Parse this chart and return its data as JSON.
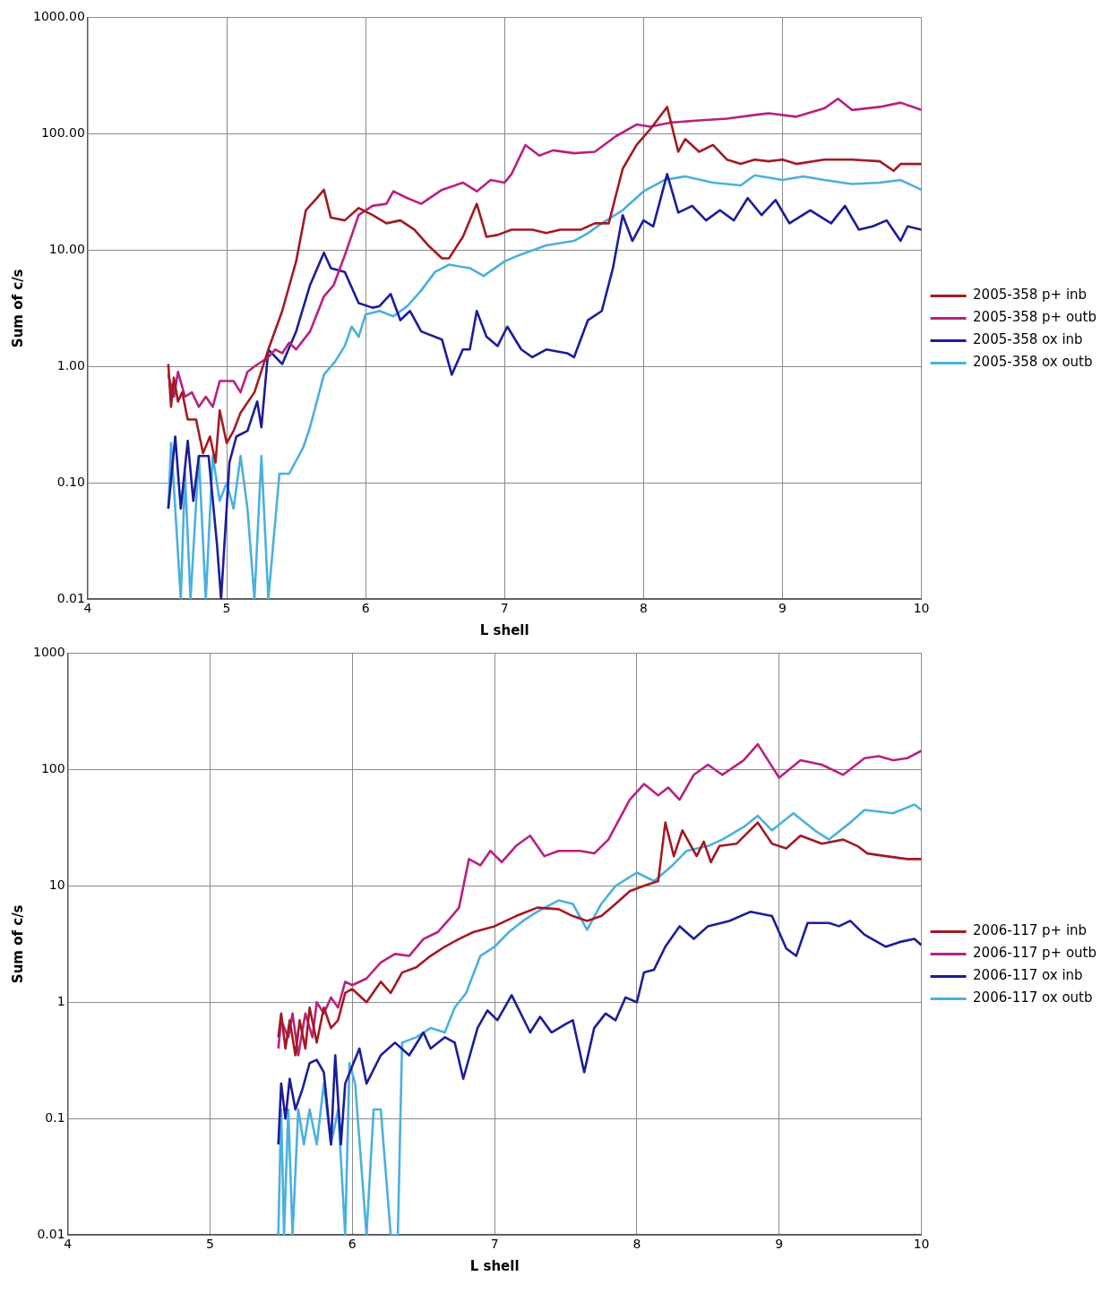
{
  "chart_data": [
    {
      "type": "line",
      "xlabel": "L shell",
      "ylabel": "Sum of c/s",
      "log": "y",
      "grid": true,
      "legend": "right",
      "marker": "none",
      "line_style": "solid",
      "xlim": [
        4,
        10
      ],
      "xticks": [
        4,
        5,
        6,
        7,
        8,
        9,
        10
      ],
      "ylim": [
        0.01,
        1000
      ],
      "yticks": [
        {
          "value": 0.01,
          "label": "0.01"
        },
        {
          "value": 0.1,
          "label": "0.10"
        },
        {
          "value": 1,
          "label": "1.00"
        },
        {
          "value": 10,
          "label": "10.00"
        },
        {
          "value": 100,
          "label": "100.00"
        },
        {
          "value": 1000,
          "label": "1000.00"
        }
      ],
      "series": [
        {
          "name": "2005-358 p+ inb",
          "color": "#a31a22",
          "x": [
            4.58,
            4.6,
            4.62,
            4.65,
            4.68,
            4.72,
            4.78,
            4.83,
            4.88,
            4.92,
            4.95,
            5.0,
            5.05,
            5.1,
            5.2,
            5.3,
            5.4,
            5.5,
            5.57,
            5.65,
            5.7,
            5.75,
            5.85,
            5.95,
            6.05,
            6.15,
            6.25,
            6.35,
            6.45,
            6.55,
            6.6,
            6.7,
            6.8,
            6.87,
            6.95,
            7.05,
            7.2,
            7.3,
            7.4,
            7.55,
            7.65,
            7.75,
            7.85,
            7.95,
            8.05,
            8.17,
            8.25,
            8.3,
            8.4,
            8.5,
            8.6,
            8.7,
            8.8,
            8.9,
            9.0,
            9.1,
            9.3,
            9.5,
            9.7,
            9.8,
            9.85,
            10
          ],
          "values": [
            1.05,
            0.45,
            0.8,
            0.5,
            0.6,
            0.35,
            0.35,
            0.18,
            0.25,
            0.15,
            0.42,
            0.22,
            0.28,
            0.4,
            0.6,
            1.4,
            3,
            8,
            22,
            28,
            33,
            19,
            18,
            23,
            20,
            17,
            18,
            15,
            11,
            8.5,
            8.5,
            13,
            25,
            13,
            13.5,
            15,
            15,
            14,
            15,
            15,
            17,
            17,
            50,
            80,
            110,
            170,
            70,
            90,
            70,
            80,
            60,
            55,
            60,
            58,
            60,
            55,
            60,
            60,
            58,
            48,
            55,
            55
          ]
        },
        {
          "name": "2005-358 p+ outb",
          "color": "#b8217f",
          "x": [
            4.58,
            4.62,
            4.65,
            4.7,
            4.75,
            4.8,
            4.85,
            4.9,
            4.95,
            5.05,
            5.1,
            5.15,
            5.2,
            5.3,
            5.35,
            5.4,
            5.45,
            5.5,
            5.6,
            5.7,
            5.77,
            5.85,
            5.95,
            6.05,
            6.15,
            6.2,
            6.3,
            6.4,
            6.55,
            6.7,
            6.8,
            6.9,
            7.0,
            7.05,
            7.15,
            7.25,
            7.35,
            7.5,
            7.65,
            7.8,
            7.95,
            8.05,
            8.2,
            8.4,
            8.6,
            8.8,
            8.9,
            9.1,
            9.3,
            9.4,
            9.5,
            9.7,
            9.85,
            10
          ],
          "values": [
            0.85,
            0.55,
            0.9,
            0.55,
            0.6,
            0.45,
            0.55,
            0.45,
            0.75,
            0.75,
            0.6,
            0.9,
            1.0,
            1.2,
            1.4,
            1.3,
            1.6,
            1.4,
            2,
            4,
            5,
            9,
            20,
            24,
            25,
            32,
            28,
            25,
            33,
            38,
            32,
            40,
            38,
            45,
            80,
            65,
            72,
            68,
            70,
            95,
            120,
            115,
            125,
            130,
            135,
            145,
            150,
            140,
            165,
            200,
            160,
            170,
            185,
            160
          ]
        },
        {
          "name": "2005-358 ox inb",
          "color": "#1c1c9a",
          "x": [
            4.58,
            4.63,
            4.67,
            4.72,
            4.76,
            4.8,
            4.87,
            4.93,
            4.96,
            5.02,
            5.07,
            5.15,
            5.22,
            5.25,
            5.3,
            5.4,
            5.5,
            5.6,
            5.7,
            5.75,
            5.85,
            5.95,
            6.05,
            6.1,
            6.18,
            6.25,
            6.32,
            6.4,
            6.55,
            6.62,
            6.7,
            6.75,
            6.8,
            6.87,
            6.95,
            7.02,
            7.12,
            7.2,
            7.3,
            7.45,
            7.5,
            7.6,
            7.7,
            7.78,
            7.85,
            7.92,
            8.0,
            8.07,
            8.17,
            8.25,
            8.35,
            8.45,
            8.55,
            8.65,
            8.75,
            8.85,
            8.95,
            9.05,
            9.2,
            9.35,
            9.45,
            9.55,
            9.65,
            9.75,
            9.85,
            9.9,
            10
          ],
          "values": [
            0.06,
            0.25,
            0.06,
            0.23,
            0.07,
            0.17,
            0.17,
            0.03,
            0.01,
            0.15,
            0.25,
            0.28,
            0.5,
            0.3,
            1.4,
            1.05,
            2,
            5,
            9.5,
            7,
            6.5,
            3.5,
            3.2,
            3.3,
            4.2,
            2.5,
            3,
            2,
            1.7,
            0.85,
            1.4,
            1.4,
            3,
            1.8,
            1.5,
            2.2,
            1.4,
            1.2,
            1.4,
            1.3,
            1.2,
            2.5,
            3,
            7,
            20,
            12,
            18,
            16,
            45,
            21,
            24,
            18,
            22,
            18,
            28,
            20,
            27,
            17,
            22,
            17,
            24,
            15,
            16,
            18,
            12,
            16,
            15
          ]
        },
        {
          "name": "2005-358 ox outb",
          "color": "#4ab0de",
          "x": [
            4.58,
            4.6,
            4.63,
            4.67,
            4.7,
            4.74,
            4.8,
            4.85,
            4.9,
            4.95,
            5.0,
            5.05,
            5.1,
            5.15,
            5.2,
            5.25,
            5.3,
            5.38,
            5.45,
            5.55,
            5.6,
            5.7,
            5.78,
            5.85,
            5.9,
            5.95,
            6.0,
            6.1,
            6.2,
            6.3,
            6.4,
            6.5,
            6.6,
            6.75,
            6.85,
            7.0,
            7.1,
            7.3,
            7.5,
            7.6,
            7.7,
            7.85,
            8.0,
            8.15,
            8.3,
            8.5,
            8.7,
            8.8,
            9.0,
            9.15,
            9.3,
            9.5,
            9.7,
            9.85,
            10
          ],
          "values": [
            0.06,
            0.22,
            0.06,
            0.01,
            0.12,
            0.01,
            0.17,
            0.01,
            0.17,
            0.07,
            0.1,
            0.06,
            0.17,
            0.06,
            0.01,
            0.17,
            0.01,
            0.12,
            0.12,
            0.2,
            0.3,
            0.85,
            1.1,
            1.5,
            2.2,
            1.8,
            2.8,
            3,
            2.7,
            3.3,
            4.5,
            6.5,
            7.5,
            7,
            6,
            8,
            9,
            11,
            12,
            14,
            17,
            22,
            32,
            40,
            43,
            38,
            36,
            44,
            40,
            43,
            40,
            37,
            38,
            40,
            33
          ]
        }
      ]
    },
    {
      "type": "line",
      "xlabel": "L shell",
      "ylabel": "Sum of c/s",
      "log": "y",
      "grid": true,
      "legend": "right",
      "marker": "none",
      "line_style": "solid",
      "xlim": [
        4,
        10
      ],
      "xticks": [
        4,
        5,
        6,
        7,
        8,
        9,
        10
      ],
      "ylim": [
        0.01,
        1000
      ],
      "yticks": [
        0.01,
        0.1,
        1,
        10,
        100,
        1000
      ],
      "series": [
        {
          "name": "2006-117 p+ inb",
          "color": "#a31a22",
          "x": [
            5.48,
            5.5,
            5.53,
            5.56,
            5.6,
            5.63,
            5.67,
            5.7,
            5.75,
            5.8,
            5.85,
            5.9,
            5.95,
            6.0,
            6.1,
            6.2,
            6.27,
            6.35,
            6.45,
            6.55,
            6.65,
            6.75,
            6.85,
            7.0,
            7.15,
            7.3,
            7.45,
            7.55,
            7.65,
            7.75,
            7.85,
            7.95,
            8.05,
            8.15,
            8.2,
            8.26,
            8.32,
            8.42,
            8.47,
            8.52,
            8.58,
            8.7,
            8.85,
            8.95,
            9.05,
            9.15,
            9.3,
            9.45,
            9.55,
            9.62,
            9.75,
            9.9,
            10
          ],
          "values": [
            0.5,
            0.8,
            0.4,
            0.7,
            0.35,
            0.7,
            0.4,
            0.9,
            0.45,
            0.9,
            0.6,
            0.7,
            1.2,
            1.3,
            1.0,
            1.5,
            1.2,
            1.8,
            2,
            2.5,
            3,
            3.5,
            4.0,
            4.5,
            5.5,
            6.5,
            6.3,
            5.5,
            5.0,
            5.5,
            7,
            9,
            10,
            11,
            35,
            18,
            30,
            18,
            24,
            16,
            22,
            23,
            35,
            23,
            21,
            27,
            23,
            25,
            22,
            19,
            18,
            17,
            17
          ]
        },
        {
          "name": "2006-117 p+ outb",
          "color": "#b8217f",
          "x": [
            5.48,
            5.5,
            5.55,
            5.58,
            5.62,
            5.67,
            5.72,
            5.75,
            5.8,
            5.85,
            5.9,
            5.95,
            6.0,
            6.1,
            6.2,
            6.3,
            6.4,
            6.5,
            6.6,
            6.7,
            6.75,
            6.82,
            6.9,
            6.97,
            7.05,
            7.15,
            7.25,
            7.35,
            7.45,
            7.6,
            7.7,
            7.8,
            7.95,
            8.05,
            8.15,
            8.22,
            8.3,
            8.4,
            8.5,
            8.6,
            8.75,
            8.85,
            9.0,
            9.15,
            9.3,
            9.45,
            9.6,
            9.7,
            9.8,
            9.9,
            10
          ],
          "values": [
            0.4,
            0.7,
            0.5,
            0.8,
            0.35,
            0.8,
            0.5,
            1.0,
            0.8,
            1.1,
            0.9,
            1.5,
            1.4,
            1.6,
            2.2,
            2.6,
            2.5,
            3.5,
            4,
            5.5,
            6.5,
            17,
            15,
            20,
            16,
            22,
            27,
            18,
            20,
            20,
            19,
            25,
            55,
            75,
            60,
            70,
            55,
            90,
            110,
            90,
            120,
            165,
            85,
            120,
            110,
            90,
            125,
            130,
            120,
            125,
            145
          ]
        },
        {
          "name": "2006-117 ox inb",
          "color": "#1c1c9a",
          "x": [
            5.48,
            5.5,
            5.53,
            5.56,
            5.6,
            5.65,
            5.7,
            5.75,
            5.8,
            5.85,
            5.88,
            5.92,
            5.95,
            6.05,
            6.1,
            6.2,
            6.3,
            6.4,
            6.5,
            6.55,
            6.65,
            6.72,
            6.78,
            6.88,
            6.95,
            7.02,
            7.12,
            7.25,
            7.32,
            7.4,
            7.5,
            7.55,
            7.63,
            7.7,
            7.78,
            7.85,
            7.92,
            8.0,
            8.05,
            8.12,
            8.2,
            8.3,
            8.4,
            8.5,
            8.65,
            8.8,
            8.95,
            9.05,
            9.12,
            9.2,
            9.35,
            9.42,
            9.5,
            9.6,
            9.75,
            9.85,
            9.95,
            10
          ],
          "values": [
            0.06,
            0.2,
            0.1,
            0.22,
            0.12,
            0.18,
            0.3,
            0.32,
            0.25,
            0.06,
            0.35,
            0.06,
            0.2,
            0.4,
            0.2,
            0.35,
            0.45,
            0.35,
            0.55,
            0.4,
            0.5,
            0.45,
            0.22,
            0.6,
            0.85,
            0.7,
            1.15,
            0.55,
            0.75,
            0.55,
            0.65,
            0.7,
            0.25,
            0.6,
            0.8,
            0.7,
            1.1,
            1.0,
            1.8,
            1.9,
            3.0,
            4.5,
            3.5,
            4.5,
            5,
            6,
            5.5,
            2.9,
            2.5,
            4.8,
            4.8,
            4.5,
            5.0,
            3.8,
            3.0,
            3.3,
            3.5,
            3.1
          ]
        },
        {
          "name": "2006-117 ox outb",
          "color": "#4ab0de",
          "x": [
            5.48,
            5.5,
            5.52,
            5.55,
            5.58,
            5.62,
            5.66,
            5.7,
            5.75,
            5.8,
            5.85,
            5.9,
            5.95,
            5.98,
            6.02,
            6.1,
            6.15,
            6.2,
            6.27,
            6.32,
            6.35,
            6.45,
            6.55,
            6.65,
            6.72,
            6.8,
            6.9,
            7.0,
            7.1,
            7.2,
            7.3,
            7.45,
            7.55,
            7.65,
            7.75,
            7.85,
            8.0,
            8.12,
            8.25,
            8.35,
            8.5,
            8.6,
            8.75,
            8.85,
            8.95,
            9.1,
            9.25,
            9.35,
            9.5,
            9.6,
            9.8,
            9.95,
            10
          ],
          "values": [
            0.01,
            0.12,
            0.01,
            0.12,
            0.01,
            0.12,
            0.06,
            0.12,
            0.06,
            0.2,
            0.06,
            0.12,
            0.01,
            0.3,
            0.2,
            0.01,
            0.12,
            0.12,
            0.01,
            0.01,
            0.45,
            0.5,
            0.6,
            0.55,
            0.9,
            1.2,
            2.5,
            3,
            4,
            5,
            6,
            7.5,
            7,
            4.2,
            7,
            10,
            13,
            11,
            15,
            20,
            22,
            25,
            32,
            40,
            30,
            42,
            30,
            25,
            35,
            45,
            42,
            50,
            45
          ]
        }
      ]
    }
  ]
}
